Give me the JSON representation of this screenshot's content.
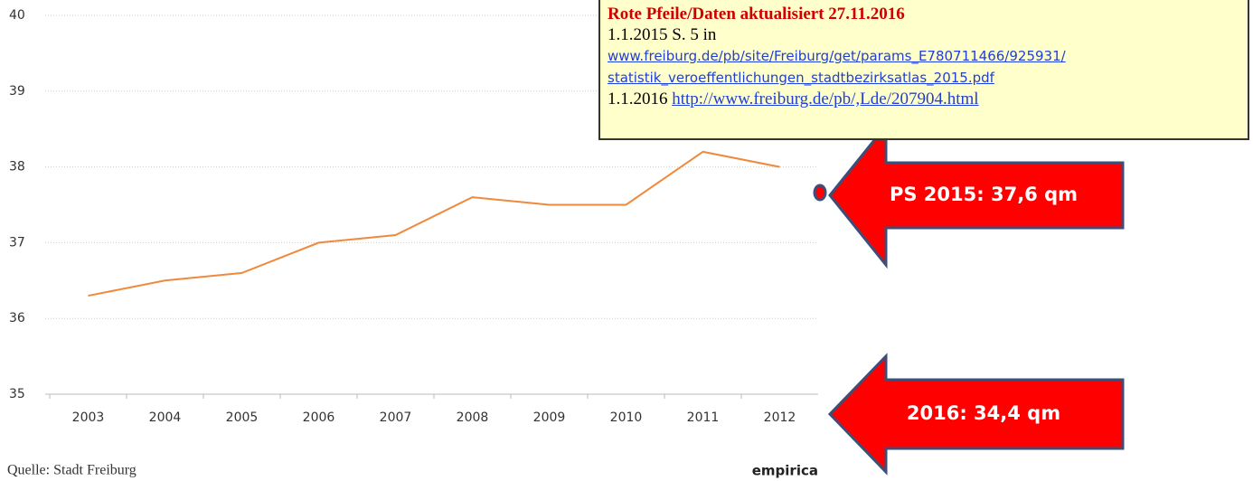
{
  "chart_data": {
    "type": "line",
    "categories": [
      "2003",
      "2004",
      "2005",
      "2006",
      "2007",
      "2008",
      "2009",
      "2010",
      "2011",
      "2012"
    ],
    "series": [
      {
        "color": "#f0893b",
        "values": [
          36.3,
          36.5,
          36.6,
          37.0,
          37.1,
          37.6,
          37.5,
          37.5,
          38.2,
          38.0
        ]
      }
    ],
    "ylim": [
      35,
      40
    ],
    "yticks": [
      35,
      36,
      37,
      38,
      39,
      40
    ],
    "grid": true,
    "source": "Quelle: Stadt Freiburg",
    "brand": "empirica",
    "annotations": [
      "PS 2015: 37,6 qm",
      "2016: 34,4 qm"
    ]
  },
  "note": {
    "title": "Rote Pfeile/Daten aktualisiert 27.11.2016",
    "line1": "1.1.2015 S. 5 in",
    "link1a": "www.freiburg.de/pb/site/Freiburg/get/params_E780711466/925931/",
    "link1b": "statistik_veroeffentlichungen_stadtbezirksatlas_2015.pdf",
    "line2": "1.1.2016",
    "link2": "http://www.freiburg.de/pb/,Lde/207904.html"
  }
}
